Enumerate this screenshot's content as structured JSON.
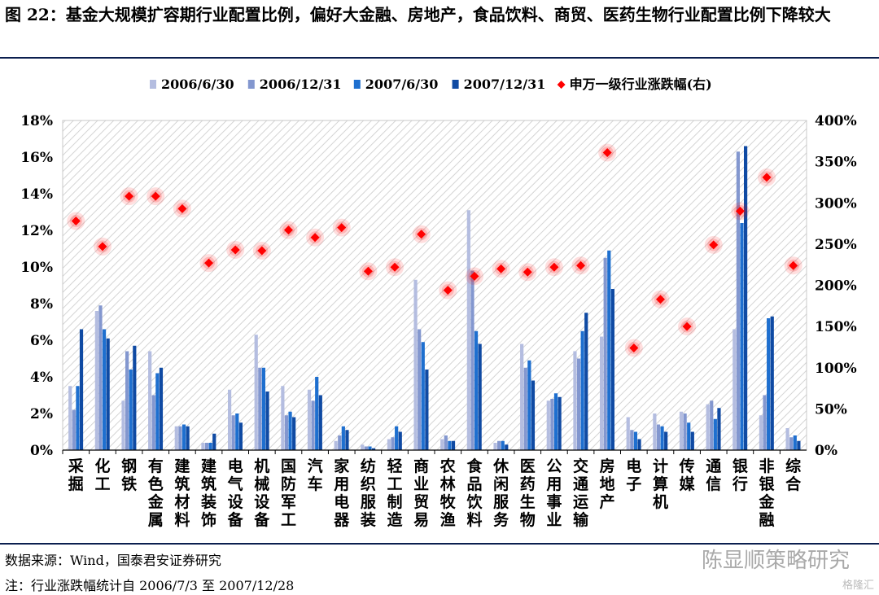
{
  "title": "图 22：基金大规模扩容期行业配置比例，偏好大金融、房地产，食品饮料、商贸、医药生物行业配置比例下降较大",
  "source": "数据来源：Wind，国泰君安证券研究",
  "note": "注：行业涨跌幅统计自 2006/7/3 至 2007/12/28",
  "watermark": "陈显顺策略研究",
  "watermark_small": "格隆汇",
  "chart_data": {
    "type": "bar",
    "categories": [
      "采掘",
      "化工",
      "钢铁",
      "有色金属",
      "建筑材料",
      "建筑装饰",
      "电气设备",
      "机械设备",
      "国防军工",
      "汽车",
      "家用电器",
      "纺织服装",
      "轻工制造",
      "商业贸易",
      "农林牧渔",
      "食品饮料",
      "休闲服务",
      "医药生物",
      "公用事业",
      "交通运输",
      "房地产",
      "电子",
      "计算机",
      "传媒",
      "通信",
      "银行",
      "非银金融",
      "综合"
    ],
    "series": [
      {
        "name": "2006/6/30",
        "axis": "left",
        "color": "#b4bde0",
        "values": [
          3.5,
          7.6,
          2.7,
          5.4,
          1.3,
          0.4,
          3.3,
          6.3,
          3.5,
          3.3,
          0.5,
          0.3,
          0.6,
          9.3,
          0.6,
          13.1,
          0.4,
          5.8,
          2.7,
          5.4,
          6.2,
          1.8,
          2.0,
          2.1,
          2.5,
          6.6,
          1.9,
          1.2
        ]
      },
      {
        "name": "2006/12/31",
        "axis": "left",
        "color": "#8397cf",
        "values": [
          2.2,
          7.9,
          5.4,
          3.0,
          1.3,
          0.4,
          1.9,
          4.5,
          1.9,
          2.7,
          0.8,
          0.2,
          0.7,
          6.6,
          0.8,
          9.8,
          0.5,
          4.5,
          2.8,
          5.0,
          10.5,
          1.1,
          1.4,
          2.0,
          2.7,
          16.3,
          3.0,
          0.7
        ]
      },
      {
        "name": "2007/6/30",
        "axis": "left",
        "color": "#1e6fcf",
        "values": [
          3.5,
          6.6,
          4.4,
          4.2,
          1.4,
          0.4,
          2.0,
          4.5,
          2.1,
          4.0,
          1.3,
          0.2,
          1.3,
          5.9,
          0.5,
          6.5,
          0.5,
          4.9,
          3.1,
          6.5,
          10.9,
          1.0,
          1.3,
          1.5,
          1.7,
          12.4,
          7.2,
          0.8
        ]
      },
      {
        "name": "2007/12/31",
        "axis": "left",
        "color": "#0f4aa3",
        "values": [
          6.6,
          6.1,
          5.7,
          4.5,
          1.3,
          0.9,
          1.5,
          3.2,
          1.8,
          3.0,
          1.1,
          0.1,
          1.0,
          4.4,
          0.5,
          5.8,
          0.3,
          3.8,
          2.9,
          7.5,
          8.8,
          0.6,
          1.0,
          1.0,
          2.3,
          16.6,
          7.3,
          0.5
        ]
      },
      {
        "name": "申万一级行业涨跌幅(右)",
        "axis": "right",
        "type": "scatter",
        "color": "#ff0000",
        "values": [
          278,
          247,
          308,
          308,
          293,
          227,
          243,
          242,
          267,
          258,
          270,
          217,
          222,
          262,
          194,
          211,
          220,
          216,
          222,
          224,
          361,
          124,
          183,
          150,
          249,
          290,
          331,
          224
        ]
      }
    ],
    "y_left": {
      "min": 0,
      "max": 18,
      "step": 2,
      "unit": "%",
      "ticks": [
        "0%",
        "2%",
        "4%",
        "6%",
        "8%",
        "10%",
        "12%",
        "14%",
        "16%",
        "18%"
      ]
    },
    "y_right": {
      "min": 0,
      "max": 400,
      "step": 50,
      "unit": "%",
      "ticks": [
        "0%",
        "50%",
        "100%",
        "150%",
        "200%",
        "250%",
        "300%",
        "350%",
        "400%"
      ]
    },
    "legend_position": "top",
    "grid": false
  }
}
